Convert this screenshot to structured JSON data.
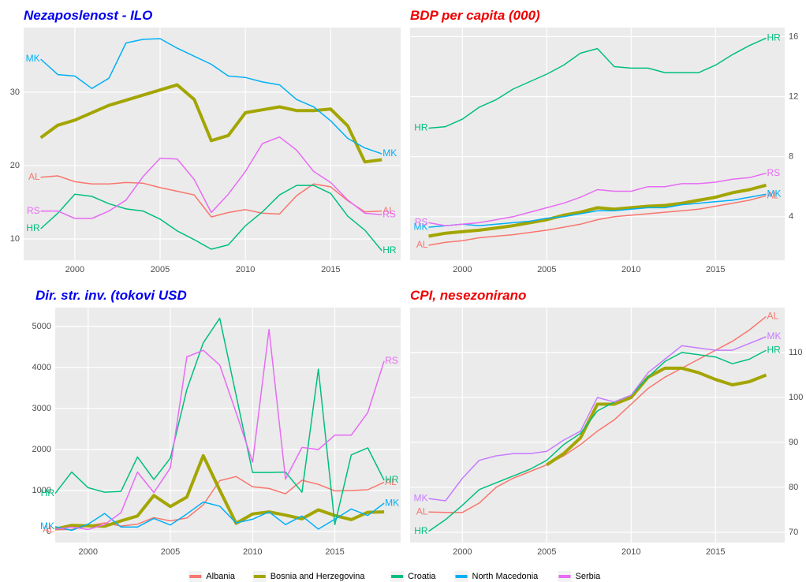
{
  "chart_data": [
    {
      "type": "line",
      "title": "Nezaposlenost - ILO",
      "title_color": "#0000ee",
      "y_axis": "left",
      "grid": true,
      "x": [
        1998,
        1999,
        2000,
        2001,
        2002,
        2003,
        2004,
        2005,
        2006,
        2007,
        2008,
        2009,
        2010,
        2011,
        2012,
        2013,
        2014,
        2015,
        2016,
        2017,
        2018
      ],
      "xlim": [
        1997,
        2019.1
      ],
      "xticks": [
        2000,
        2005,
        2010,
        2015
      ],
      "ylim": [
        7.1,
        38.8
      ],
      "yticks": [
        10,
        20,
        30
      ],
      "series": [
        {
          "label": "AL",
          "label_at": [
            "start",
            "end"
          ],
          "color": "#F8766D",
          "width": 1.5,
          "values": [
            18.4,
            18.6,
            17.8,
            17.5,
            17.5,
            17.7,
            17.6,
            17.0,
            16.5,
            16.0,
            13.0,
            13.6,
            14.0,
            13.5,
            13.4,
            15.9,
            17.5,
            17.1,
            15.2,
            13.7,
            13.8
          ]
        },
        {
          "color": "#A3A500",
          "width": 4,
          "values": [
            23.8,
            25.5,
            26.2,
            27.2,
            28.2,
            28.9,
            29.6,
            30.3,
            31.0,
            29.0,
            23.4,
            24.1,
            27.2,
            27.6,
            28.0,
            27.5,
            27.5,
            27.7,
            25.4,
            20.5,
            20.8
          ]
        },
        {
          "label": "HR",
          "label_at": [
            "start",
            "end"
          ],
          "color": "#00BF7D",
          "width": 1.5,
          "values": [
            11.4,
            13.5,
            16.1,
            15.8,
            14.8,
            14.1,
            13.8,
            12.7,
            11.1,
            9.9,
            8.6,
            9.2,
            11.8,
            13.7,
            16.0,
            17.3,
            17.3,
            16.2,
            13.1,
            11.2,
            8.4
          ]
        },
        {
          "label": "MK",
          "label_at": [
            "start",
            "end"
          ],
          "color": "#00B0F6",
          "width": 1.5,
          "values": [
            34.5,
            32.4,
            32.2,
            30.5,
            31.9,
            36.7,
            37.2,
            37.3,
            36.0,
            34.9,
            33.8,
            32.2,
            32.0,
            31.4,
            31.0,
            29.0,
            28.0,
            26.1,
            23.7,
            22.4,
            21.6
          ]
        },
        {
          "label": "RS",
          "label_at": [
            "start",
            "end"
          ],
          "color": "#E76BF3",
          "width": 1.5,
          "values": [
            13.8,
            13.8,
            12.8,
            12.8,
            13.8,
            15.3,
            18.5,
            21.0,
            20.9,
            18.1,
            13.6,
            16.1,
            19.2,
            23.0,
            23.9,
            22.1,
            19.2,
            17.7,
            15.3,
            13.5,
            13.3
          ]
        }
      ]
    },
    {
      "type": "line",
      "title": "BDP per capita (000)",
      "title_color": "#ee0000",
      "y_axis": "right",
      "grid": true,
      "x": [
        1998,
        1999,
        2000,
        2001,
        2002,
        2003,
        2004,
        2005,
        2006,
        2007,
        2008,
        2009,
        2010,
        2011,
        2012,
        2013,
        2014,
        2015,
        2016,
        2017,
        2018
      ],
      "xlim": [
        1996.9,
        2019.1
      ],
      "xticks": [
        2000,
        2005,
        2010,
        2015
      ],
      "ylim": [
        1.1,
        16.6
      ],
      "yticks": [
        4,
        8,
        12,
        16
      ],
      "series": [
        {
          "label": "AL",
          "label_at": [
            "start",
            "end"
          ],
          "color": "#F8766D",
          "width": 1.5,
          "values": [
            2.1,
            2.3,
            2.4,
            2.6,
            2.7,
            2.8,
            2.95,
            3.1,
            3.3,
            3.5,
            3.8,
            4.0,
            4.1,
            4.2,
            4.3,
            4.4,
            4.5,
            4.7,
            4.9,
            5.1,
            5.4
          ]
        },
        {
          "color": "#A3A500",
          "width": 4,
          "values": [
            2.7,
            2.9,
            3.0,
            3.1,
            3.25,
            3.4,
            3.6,
            3.8,
            4.1,
            4.3,
            4.6,
            4.5,
            4.6,
            4.7,
            4.75,
            4.9,
            5.1,
            5.3,
            5.6,
            5.8,
            6.1
          ]
        },
        {
          "label": "HR",
          "label_at": [
            "start",
            "end"
          ],
          "color": "#00BF7D",
          "width": 1.5,
          "values": [
            9.9,
            10.0,
            10.5,
            11.3,
            11.8,
            12.5,
            13.0,
            13.5,
            14.1,
            14.9,
            15.2,
            14.0,
            13.9,
            13.9,
            13.6,
            13.6,
            13.6,
            14.1,
            14.8,
            15.4,
            15.9
          ]
        },
        {
          "label": "MK",
          "label_at": [
            "start",
            "end"
          ],
          "color": "#00B0F6",
          "width": 1.5,
          "values": [
            3.3,
            3.4,
            3.5,
            3.4,
            3.5,
            3.6,
            3.7,
            3.9,
            4.0,
            4.2,
            4.4,
            4.4,
            4.5,
            4.6,
            4.6,
            4.8,
            4.9,
            5.0,
            5.1,
            5.3,
            5.5
          ]
        },
        {
          "label": "RS",
          "label_at": [
            "start",
            "end"
          ],
          "color": "#E76BF3",
          "width": 1.5,
          "values": [
            3.6,
            3.4,
            3.5,
            3.6,
            3.8,
            4.0,
            4.3,
            4.6,
            4.9,
            5.3,
            5.8,
            5.7,
            5.7,
            6.0,
            6.0,
            6.2,
            6.2,
            6.3,
            6.5,
            6.6,
            6.9
          ]
        }
      ]
    },
    {
      "type": "line",
      "title": "Dir. str. inv. (tokovi USD",
      "title_color": "#0000ee",
      "y_axis": "left",
      "grid": true,
      "x": [
        1998,
        1999,
        2000,
        2001,
        2002,
        2003,
        2004,
        2005,
        2006,
        2007,
        2008,
        2009,
        2010,
        2011,
        2012,
        2013,
        2014,
        2015,
        2016,
        2017,
        2018
      ],
      "xlim": [
        1998,
        2019
      ],
      "xticks": [
        2000,
        2005,
        2010,
        2015
      ],
      "ylim": [
        -269,
        5462
      ],
      "yticks": [
        0,
        1000,
        2000,
        3000,
        4000,
        5000
      ],
      "series": [
        {
          "label": "AL",
          "label_at": [
            "start",
            "end"
          ],
          "color": "#F8766D",
          "width": 1.5,
          "values": [
            45,
            50,
            140,
            210,
            135,
            180,
            340,
            260,
            330,
            650,
            1240,
            1340,
            1090,
            1050,
            920,
            1250,
            1150,
            990,
            1000,
            1020,
            1200
          ]
        },
        {
          "color": "#A3A500",
          "width": 4,
          "values": [
            60,
            150,
            140,
            130,
            260,
            380,
            880,
            610,
            840,
            1850,
            1010,
            200,
            430,
            480,
            400,
            310,
            530,
            390,
            290,
            470,
            480
          ]
        },
        {
          "label": "HR",
          "label_at": [
            "start",
            "end"
          ],
          "color": "#00BF7D",
          "width": 1.5,
          "values": [
            930,
            1450,
            1070,
            960,
            980,
            1820,
            1270,
            1790,
            3460,
            4600,
            5200,
            3320,
            1440,
            1440,
            1450,
            960,
            3960,
            170,
            1870,
            2040,
            1250
          ]
        },
        {
          "label": "MK",
          "label_at": [
            "start",
            "end"
          ],
          "color": "#00B0F6",
          "width": 1.5,
          "values": [
            120,
            30,
            180,
            440,
            110,
            110,
            320,
            160,
            430,
            720,
            620,
            210,
            300,
            480,
            170,
            380,
            60,
            300,
            550,
            390,
            690
          ]
        },
        {
          "label": "RS",
          "label_at": [
            "end"
          ],
          "color": "#E76BF3",
          "width": 1.5,
          "values": [
            50,
            110,
            50,
            170,
            460,
            1450,
            950,
            1550,
            4260,
            4420,
            4060,
            2900,
            1690,
            4930,
            1280,
            2050,
            2000,
            2350,
            2350,
            2900,
            4160
          ]
        }
      ]
    },
    {
      "type": "line",
      "title": "CPI, nesezonirano",
      "title_color": "#ee0000",
      "y_axis": "right",
      "grid": true,
      "x": [
        1998,
        1999,
        2000,
        2001,
        2002,
        2003,
        2004,
        2005,
        2006,
        2007,
        2008,
        2009,
        2010,
        2011,
        2012,
        2013,
        2014,
        2015,
        2016,
        2017,
        2018
      ],
      "xlim": [
        1996.9,
        2019.1
      ],
      "xticks": [
        2000,
        2005,
        2010,
        2015
      ],
      "ylim": [
        67.7,
        120
      ],
      "yticks": [
        70,
        80,
        90,
        100,
        110
      ],
      "series": [
        {
          "label": "AL",
          "label_at": [
            "start",
            "end"
          ],
          "color": "#F8766D",
          "width": 1.5,
          "values": [
            74.5,
            74.4,
            74.4,
            76.5,
            80,
            82,
            83.5,
            85,
            87,
            89.5,
            92.5,
            95,
            98.5,
            102,
            104.5,
            106.5,
            108.5,
            110.5,
            112.5,
            115,
            118
          ]
        },
        {
          "color": "#A3A500",
          "width": 4,
          "values": [
            null,
            null,
            null,
            null,
            null,
            null,
            null,
            85,
            87.5,
            91,
            98.5,
            98.5,
            100,
            104.5,
            106.5,
            106.5,
            105.5,
            104,
            102.8,
            103.5,
            105
          ]
        },
        {
          "label": "HR",
          "label_at": [
            "start",
            "end"
          ],
          "color": "#00BF7D",
          "width": 1.5,
          "values": [
            70.2,
            72.8,
            76,
            79.5,
            81,
            82.5,
            84,
            86,
            89.5,
            92,
            97,
            99,
            100.5,
            104.5,
            108,
            110,
            109.5,
            109,
            107.5,
            108.5,
            110.5
          ]
        },
        {
          "label": "MK",
          "label_at": [
            "start",
            "end"
          ],
          "color": "#C77CFF",
          "width": 1.5,
          "values": [
            77.5,
            77,
            82,
            86,
            87,
            87.5,
            87.5,
            88,
            90.5,
            92.5,
            100,
            99,
            100.5,
            105.5,
            108.5,
            111.5,
            111,
            110.5,
            110.5,
            112,
            113.5
          ]
        }
      ]
    }
  ],
  "legend": {
    "entries": [
      {
        "name": "Albania",
        "color": "#F8766D"
      },
      {
        "name": "Bosnia and Herzegovina",
        "color": "#A3A500"
      },
      {
        "name": "Croatia",
        "color": "#00BF7D"
      },
      {
        "name": "North Macedonia",
        "color": "#00B0F6"
      },
      {
        "name": "Serbia",
        "color": "#E76BF3"
      }
    ]
  }
}
